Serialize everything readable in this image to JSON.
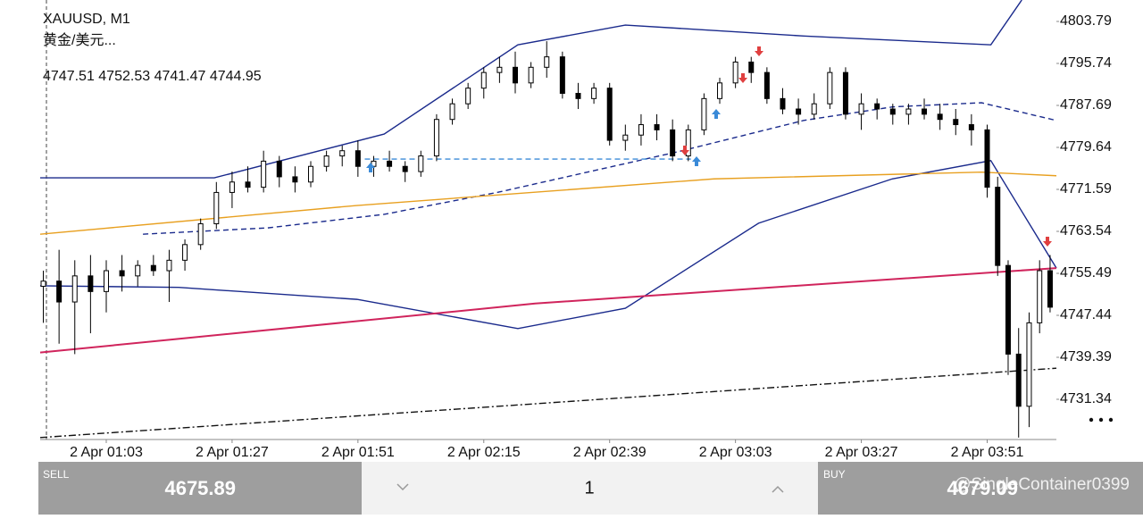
{
  "header": {
    "symbol": "XAUUSD, M1",
    "description": "黄金/美元...",
    "ohlc": "4747.51 4752.53 4741.47 4744.95"
  },
  "chart_data": {
    "type": "candlestick",
    "xlim": [
      50.4,
      244.2
    ],
    "xticks": [
      {
        "value": 63,
        "label": "2 Apr 01:03"
      },
      {
        "value": 87,
        "label": "2 Apr 01:27"
      },
      {
        "value": 111,
        "label": "2 Apr 01:51"
      },
      {
        "value": 135,
        "label": "2 Apr 02:15"
      },
      {
        "value": 159,
        "label": "2 Apr 02:39"
      },
      {
        "value": 183,
        "label": "2 Apr 03:03"
      },
      {
        "value": 207,
        "label": "2 Apr 03:27"
      },
      {
        "value": 231,
        "label": "2 Apr 03:51"
      }
    ],
    "ylim": [
      4723.63,
      4807.9
    ],
    "yticks": [
      4803.79,
      4795.74,
      4787.69,
      4779.64,
      4771.59,
      4763.54,
      4755.49,
      4747.44,
      4739.39,
      4731.34
    ],
    "up_color": "#ffffff",
    "down_color": "#000000",
    "candles": [
      [
        51,
        4753,
        4756,
        4746,
        4754
      ],
      [
        54,
        4754,
        4760,
        4742,
        4750
      ],
      [
        57,
        4750,
        4758,
        4740,
        4755
      ],
      [
        60,
        4755,
        4759,
        4744,
        4752
      ],
      [
        63,
        4752,
        4758,
        4748,
        4756
      ],
      [
        66,
        4756,
        4759,
        4752,
        4755
      ],
      [
        69,
        4755,
        4758,
        4753,
        4757
      ],
      [
        72,
        4757,
        4759,
        4755,
        4756
      ],
      [
        75,
        4756,
        4760,
        4750,
        4758
      ],
      [
        78,
        4758,
        4762,
        4756,
        4761
      ],
      [
        81,
        4761,
        4766,
        4760,
        4765
      ],
      [
        84,
        4765,
        4773,
        4764,
        4771
      ],
      [
        87,
        4771,
        4775,
        4768,
        4773
      ],
      [
        90,
        4773,
        4776,
        4771,
        4772
      ],
      [
        93,
        4772,
        4779,
        4771,
        4777
      ],
      [
        96,
        4777,
        4778,
        4772,
        4774
      ],
      [
        99,
        4774,
        4776,
        4771,
        4773
      ],
      [
        102,
        4773,
        4777,
        4772,
        4776
      ],
      [
        105,
        4776,
        4779,
        4775,
        4778
      ],
      [
        108,
        4778,
        4780,
        4776,
        4779
      ],
      [
        111,
        4779,
        4781,
        4774,
        4776
      ],
      [
        114,
        4776,
        4778,
        4774,
        4777
      ],
      [
        117,
        4777,
        4779,
        4775,
        4776
      ],
      [
        120,
        4776,
        4777,
        4773,
        4775
      ],
      [
        123,
        4775,
        4779,
        4774,
        4778
      ],
      [
        126,
        4778,
        4786,
        4777,
        4785
      ],
      [
        129,
        4785,
        4789,
        4784,
        4788
      ],
      [
        132,
        4788,
        4792,
        4787,
        4791
      ],
      [
        135,
        4791,
        4795,
        4789,
        4794
      ],
      [
        138,
        4794,
        4797,
        4792,
        4795
      ],
      [
        141,
        4795,
        4798,
        4790,
        4792
      ],
      [
        144,
        4792,
        4796,
        4791,
        4795
      ],
      [
        147,
        4795,
        4800,
        4793,
        4797
      ],
      [
        150,
        4797,
        4798,
        4789,
        4790
      ],
      [
        153,
        4790,
        4792,
        4787,
        4789
      ],
      [
        156,
        4789,
        4792,
        4788,
        4791
      ],
      [
        159,
        4791,
        4792,
        4780,
        4781
      ],
      [
        162,
        4781,
        4784,
        4779,
        4782
      ],
      [
        165,
        4782,
        4786,
        4780,
        4784
      ],
      [
        168,
        4784,
        4786,
        4781,
        4783
      ],
      [
        171,
        4783,
        4785,
        4777,
        4778
      ],
      [
        174,
        4778,
        4784,
        4777,
        4783
      ],
      [
        177,
        4783,
        4790,
        4782,
        4789
      ],
      [
        180,
        4789,
        4793,
        4788,
        4792
      ],
      [
        183,
        4792,
        4797,
        4791,
        4796
      ],
      [
        186,
        4796,
        4797,
        4792,
        4794
      ],
      [
        189,
        4794,
        4795,
        4788,
        4789
      ],
      [
        192,
        4789,
        4791,
        4786,
        4787
      ],
      [
        195,
        4787,
        4789,
        4784,
        4786
      ],
      [
        198,
        4786,
        4790,
        4785,
        4788
      ],
      [
        201,
        4788,
        4795,
        4787,
        4794
      ],
      [
        204,
        4794,
        4795,
        4785,
        4786
      ],
      [
        207,
        4786,
        4790,
        4783,
        4788
      ],
      [
        210,
        4788,
        4789,
        4785,
        4787
      ],
      [
        213,
        4787,
        4788,
        4784,
        4786
      ],
      [
        216,
        4786,
        4788,
        4784,
        4787
      ],
      [
        219,
        4787,
        4789,
        4785,
        4786
      ],
      [
        222,
        4786,
        4788,
        4783,
        4785
      ],
      [
        225,
        4785,
        4787,
        4782,
        4784
      ],
      [
        228,
        4784,
        4786,
        4780,
        4783
      ],
      [
        231,
        4783,
        4784,
        4770,
        4772
      ],
      [
        233,
        4772,
        4774,
        4755,
        4757
      ],
      [
        235,
        4757,
        4758,
        4736,
        4740
      ],
      [
        237,
        4740,
        4745,
        4724,
        4730
      ],
      [
        239,
        4730,
        4748,
        4726,
        4746
      ],
      [
        241,
        4746,
        4758,
        4744,
        4756
      ],
      [
        243,
        4756,
        4759,
        4748,
        4749
      ]
    ],
    "lines": [
      {
        "color": "#1a2a8c",
        "style": "solid",
        "x": [
          50.4,
          83.6,
          116,
          141.5,
          162,
          196,
          231.7,
          237.6
        ],
        "values": [
          4773.8,
          4773.8,
          4782.2,
          4799.3,
          4803.1,
          4801.0,
          4799.3,
          4807.9
        ]
      },
      {
        "color": "#1a2a8c",
        "style": "dashed",
        "x": [
          70,
          93.8,
          116,
          138,
          172,
          196,
          212.9,
          229.9,
          244.2
        ],
        "values": [
          4763.0,
          4764.2,
          4766.8,
          4771.1,
          4778.8,
          4784.8,
          4787.4,
          4788.2,
          4784.8
        ]
      },
      {
        "color": "#1a2a8c",
        "style": "solid",
        "x": [
          50.4,
          76.8,
          110.8,
          141.5,
          162,
          187.4,
          212.9,
          231.7,
          244.2
        ],
        "values": [
          4753.1,
          4752.8,
          4750.5,
          4744.9,
          4748.8,
          4765.1,
          4773.6,
          4777.1,
          4756.5
        ]
      },
      {
        "color": "#e8a020",
        "style": "solid",
        "x": [
          50.4,
          110.8,
          178.9,
          229.9,
          244.2
        ],
        "values": [
          4763.0,
          4768.5,
          4773.6,
          4774.9,
          4774.2
        ]
      },
      {
        "color": "#d0245c",
        "style": "solid",
        "x": [
          50.4,
          144.8,
          244.2
        ],
        "values": [
          4740.3,
          4749.7,
          4756.5
        ]
      },
      {
        "color": "#111111",
        "style": "dashdot",
        "x": [
          50.4,
          244.2
        ],
        "values": [
          4724.0,
          4737.3
        ]
      },
      {
        "color": "#3a8ad8",
        "style": "dashed",
        "x": [
          112.3,
          174.5
        ],
        "values": [
          4777.4,
          4777.4
        ]
      }
    ]
  },
  "trade_bar": {
    "sell_label": "SELL",
    "sell_price": "4675.89",
    "volume": "1",
    "buy_label": "BUY",
    "buy_price": "4679.09"
  },
  "watermark": "@SingleContainer0399"
}
